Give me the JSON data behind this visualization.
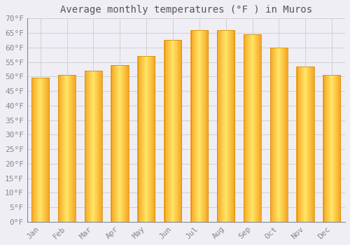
{
  "title": "Average monthly temperatures (°F ) in Muros",
  "months": [
    "Jan",
    "Feb",
    "Mar",
    "Apr",
    "May",
    "Jun",
    "Jul",
    "Aug",
    "Sep",
    "Oct",
    "Nov",
    "Dec"
  ],
  "values": [
    49.5,
    50.5,
    52,
    54,
    57,
    62.5,
    66,
    66,
    64.5,
    60,
    53.5,
    50.5
  ],
  "bar_color_center": "#FFD966",
  "bar_color_edge": "#F5A623",
  "background_color": "#F0EEF5",
  "plot_bg_color": "#F0EEF5",
  "grid_color": "#CCCCCC",
  "title_fontsize": 10,
  "tick_fontsize": 8,
  "tick_color": "#888888",
  "title_color": "#555555",
  "ylim": [
    0,
    70
  ],
  "ytick_step": 5,
  "bar_width": 0.65
}
